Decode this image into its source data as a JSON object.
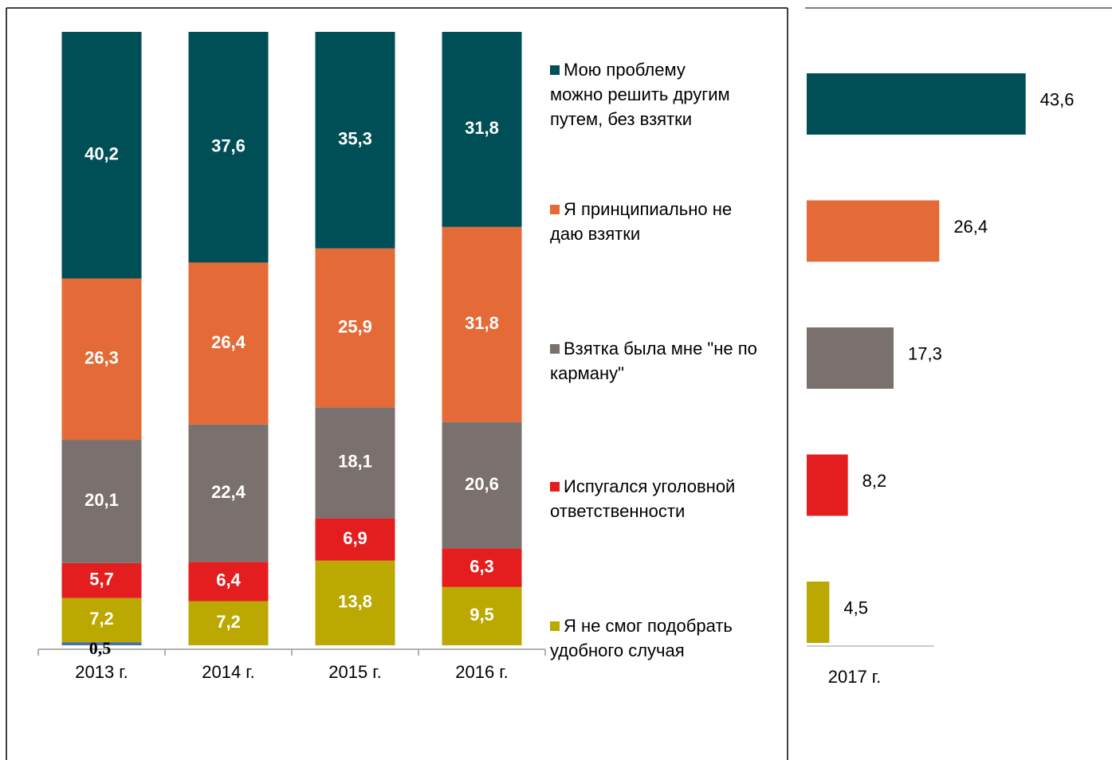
{
  "chart_data": [
    {
      "type": "stacked_bar",
      "categories": [
        "2013 г.",
        "2014 г.",
        "2015 г.",
        "2016 г."
      ],
      "ylim": [
        0,
        100
      ],
      "series": [
        {
          "color": "#4a6fa5",
          "values": [
            0.5,
            null,
            null,
            null
          ],
          "value_labels": [
            "0,5",
            null,
            null,
            null
          ]
        },
        {
          "name": "Я не смог подобрать удобного случая",
          "color": "#bba800",
          "values": [
            7.2,
            7.2,
            13.8,
            9.5
          ],
          "value_labels": [
            "7,2",
            "7,2",
            "13,8",
            "9,5"
          ]
        },
        {
          "name": "Испугался уголовной ответственности",
          "color": "#e41e1e",
          "values": [
            5.7,
            6.4,
            6.9,
            6.3
          ],
          "value_labels": [
            "5,7",
            "6,4",
            "6,9",
            "6,3"
          ]
        },
        {
          "name": "Взятка была мне \"не по карману\"",
          "color": "#7a706e",
          "values": [
            20.1,
            22.4,
            18.1,
            20.6
          ],
          "value_labels": [
            "20,1",
            "22,4",
            "18,1",
            "20,6"
          ]
        },
        {
          "name": "Я принципиально не даю взятки",
          "color": "#e46a37",
          "values": [
            26.3,
            26.4,
            25.9,
            31.8
          ],
          "value_labels": [
            "26,3",
            "26,4",
            "25,9",
            "31,8"
          ]
        },
        {
          "name": "Мою проблему можно решить другим путем, без взятки",
          "color": "#004f56",
          "values": [
            40.2,
            37.6,
            35.3,
            31.8
          ],
          "value_labels": [
            "40,2",
            "37,6",
            "35,3",
            "31,8"
          ]
        }
      ]
    },
    {
      "type": "bar",
      "orientation": "horizontal",
      "categories": [
        "2017 г."
      ],
      "xlim": [
        0,
        60
      ],
      "series": [
        {
          "color": "#004f56",
          "values": [
            43.6
          ],
          "value_labels": [
            "43,6"
          ]
        },
        {
          "color": "#e46a37",
          "values": [
            26.4
          ],
          "value_labels": [
            "26,4"
          ]
        },
        {
          "color": "#7a706e",
          "values": [
            17.3
          ],
          "value_labels": [
            "17,3"
          ]
        },
        {
          "color": "#e41e1e",
          "values": [
            8.2
          ],
          "value_labels": [
            "8,2"
          ]
        },
        {
          "color": "#bba800",
          "values": [
            4.5
          ],
          "value_labels": [
            "4,5"
          ]
        }
      ]
    }
  ]
}
